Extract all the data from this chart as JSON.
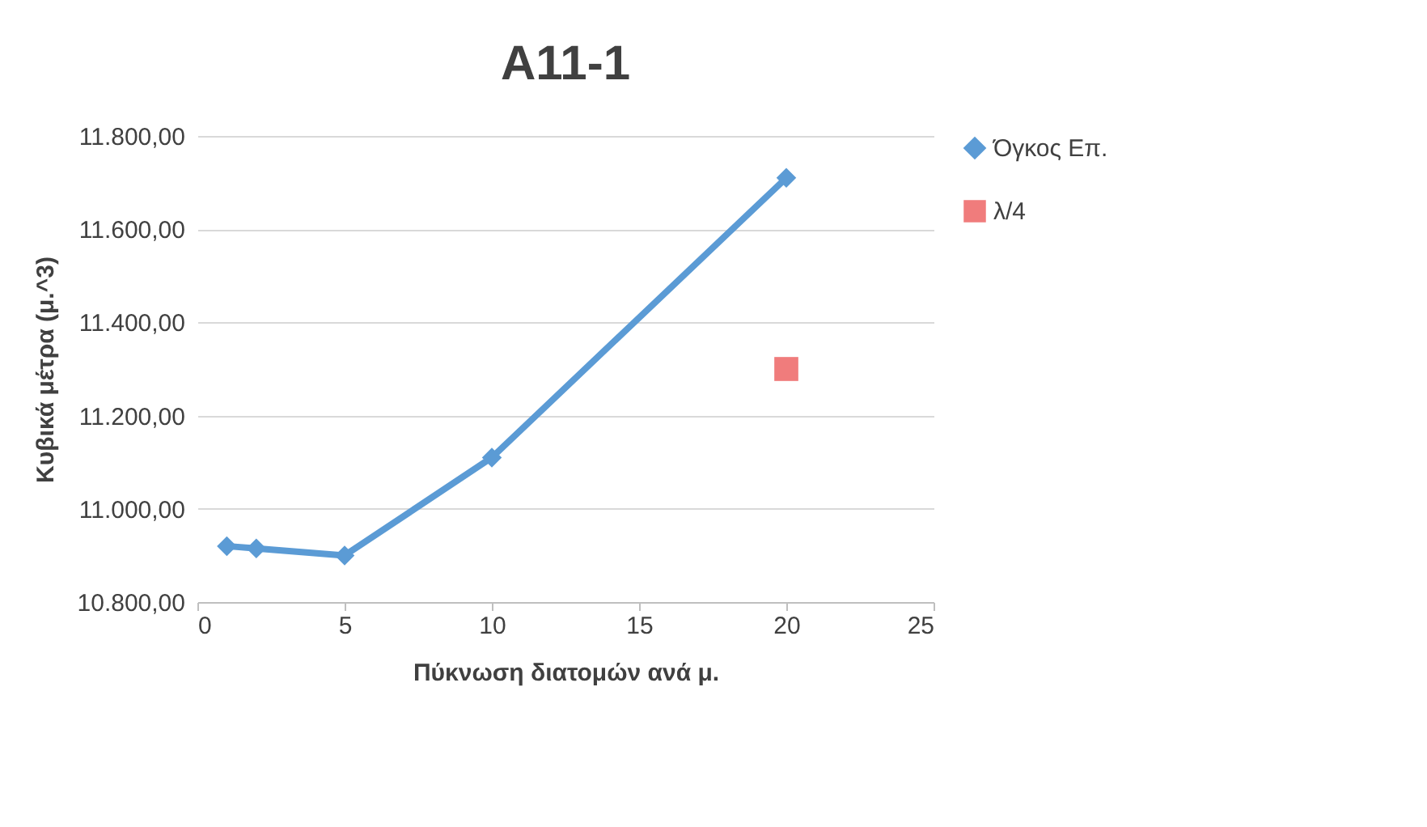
{
  "chart_data": {
    "type": "line",
    "title": "A11-1",
    "xlabel": "Πύκνωση διατομών ανά μ.",
    "ylabel": "Κυβικά μέτρα (μ.^3)",
    "x": [
      1,
      2,
      5,
      10,
      20
    ],
    "series": [
      {
        "name": "Όγκος Επ.",
        "color": "#5b9bd5",
        "type": "line",
        "marker": "diamond",
        "values": [
          10920,
          10915,
          10900,
          11110,
          11710
        ]
      },
      {
        "name": "λ/4",
        "color": "#f07c7c",
        "type": "scatter",
        "marker": "square",
        "x": [
          20
        ],
        "values": [
          11300
        ]
      }
    ],
    "xlim": [
      0,
      25
    ],
    "xticks": [
      0,
      5,
      10,
      15,
      20,
      25
    ],
    "ylim": [
      10800,
      11800
    ],
    "yticks": [
      {
        "value": 10800,
        "label": "10.800,00"
      },
      {
        "value": 11000,
        "label": "11.000,00"
      },
      {
        "value": 11200,
        "label": "11.200,00"
      },
      {
        "value": 11400,
        "label": "11.400,00"
      },
      {
        "value": 11600,
        "label": "11.600,00"
      },
      {
        "value": 11800,
        "label": "11.800,00"
      }
    ],
    "grid": "y",
    "legend": "right"
  }
}
